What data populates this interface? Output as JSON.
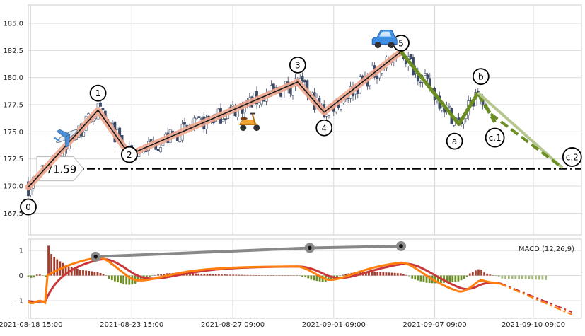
{
  "chart_data": [
    {
      "type": "candlestick",
      "panel": "price",
      "ylim": [
        165.5,
        186.7
      ],
      "yticks": [
        "167.5",
        "170.0",
        "172.5",
        "175.0",
        "177.5",
        "180.0",
        "182.5",
        "185.0"
      ],
      "support_level": 171.59,
      "support_label": "171.59",
      "xticks": [
        "2021-08-18 15:00",
        "2021-08-23 15:00",
        "2021-08-27 09:00",
        "2021-09-01 09:00",
        "2021-09-07 09:00",
        "2021-09-10 09:00"
      ],
      "impulse_waves": [
        {
          "label": "0",
          "t": 0,
          "price": 169.9
        },
        {
          "label": "1",
          "t": 29,
          "price": 177.0
        },
        {
          "label": "2",
          "t": 42,
          "price": 172.9
        },
        {
          "label": "3",
          "t": 112,
          "price": 179.6
        },
        {
          "label": "4",
          "t": 123,
          "price": 176.8
        },
        {
          "label": "5",
          "t": 155,
          "price": 182.4
        }
      ],
      "corrective_waves": [
        {
          "label": "a",
          "t": 179,
          "price": 175.7
        },
        {
          "label": "b",
          "t": 187,
          "price": 178.6
        },
        {
          "label": "c.1",
          "t": 194,
          "price": 175.9
        },
        {
          "label": "c.2",
          "t": 222,
          "price": 171.7
        }
      ],
      "icons": [
        "airplane-icon",
        "scooter-icon",
        "car-icon"
      ],
      "colors": {
        "candle_up": "#ffffff",
        "candle_down": "#3d4a66",
        "impulse_band": "#f0a890",
        "corrective": "#6b8e23",
        "projection": "#b5c68e"
      }
    },
    {
      "type": "macd",
      "panel": "indicator",
      "legend": "MACD (12,26,9)",
      "ylim": [
        -1.7,
        1.45
      ],
      "yticks": [
        "−1",
        "0",
        "1"
      ],
      "divergence_points": [
        {
          "t": 28,
          "value": 0.75
        },
        {
          "t": 117,
          "value": 1.1
        },
        {
          "t": 155,
          "value": 1.17
        }
      ],
      "colors": {
        "macd": "#ff7f0e",
        "signal": "#c8373a",
        "hist_pos": "#a33b2b",
        "hist_neg": "#6b8e23",
        "hist_proj": "#a3b97a",
        "divergence": "#888888"
      }
    }
  ]
}
